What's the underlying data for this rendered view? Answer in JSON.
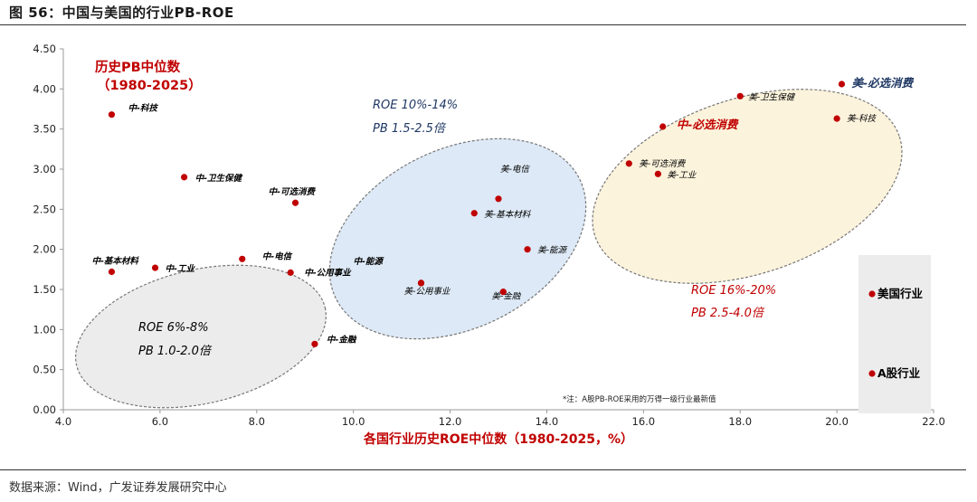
{
  "figure": {
    "title": "图 56：中国与美国的行业PB-ROE",
    "source": "数据来源：Wind，广发证券发展研究中心"
  },
  "colors": {
    "point": "#c00000",
    "red_text": "#c00000",
    "blue_text": "#1f3864",
    "grey_ellipse": "#ececec",
    "blue_ellipse": "#dde9f6",
    "yellow_ellipse": "#fcf3dc",
    "legend_box": "#ececec"
  },
  "chart_data": {
    "type": "scatter",
    "xlabel": "各国行业历史ROE中位数（1980-2025，%）",
    "ylabel_note": {
      "line1": "历史PB中位数",
      "line2": "（1980-2025）"
    },
    "xlim": [
      4.0,
      22.0
    ],
    "ylim": [
      0.0,
      4.5
    ],
    "x_ticks": [
      "4.0",
      "6.0",
      "8.0",
      "10.0",
      "12.0",
      "14.0",
      "16.0",
      "18.0",
      "20.0",
      "22.0"
    ],
    "y_ticks": [
      "0.00",
      "0.50",
      "1.00",
      "1.50",
      "2.00",
      "2.50",
      "3.00",
      "3.50",
      "4.00",
      "4.50"
    ],
    "grid": false,
    "series": [
      {
        "name": "A股行业",
        "points": [
          {
            "label": "中-科技",
            "x": 5.0,
            "y": 3.68
          },
          {
            "label": "中-卫生保健",
            "x": 6.5,
            "y": 2.9
          },
          {
            "label": "中-可选消费",
            "x": 8.8,
            "y": 2.58
          },
          {
            "label": "中-基本材料",
            "x": 5.0,
            "y": 1.72
          },
          {
            "label": "中-工业",
            "x": 5.9,
            "y": 1.77
          },
          {
            "label": "中-电信",
            "x": 7.7,
            "y": 1.88
          },
          {
            "label": "中-公用事业",
            "x": 8.7,
            "y": 1.71
          },
          {
            "label": "中-能源",
            "x": 11.4,
            "y": 1.58
          },
          {
            "label": "中-金融",
            "x": 9.2,
            "y": 0.82
          },
          {
            "label": "中-必选消费",
            "x": 16.4,
            "y": 3.53
          }
        ]
      },
      {
        "name": "美国行业",
        "points": [
          {
            "label": "美-电信",
            "x": 13.0,
            "y": 2.63
          },
          {
            "label": "美-基本材料",
            "x": 12.5,
            "y": 2.45
          },
          {
            "label": "美-能源",
            "x": 13.6,
            "y": 2.0
          },
          {
            "label": "美-公用事业",
            "x": 11.4,
            "y": 1.58
          },
          {
            "label": "美-金融",
            "x": 13.1,
            "y": 1.47
          },
          {
            "label": "美-卫生保健",
            "x": 18.0,
            "y": 3.91
          },
          {
            "label": "美-必选消费",
            "x": 20.1,
            "y": 4.06
          },
          {
            "label": "美-科技",
            "x": 20.0,
            "y": 3.63
          },
          {
            "label": "美-可选消费",
            "x": 15.7,
            "y": 3.07
          },
          {
            "label": "美-工业",
            "x": 16.3,
            "y": 2.94
          }
        ]
      }
    ],
    "clusters": [
      {
        "line1": "ROE  6%-8%",
        "line2": "PB  1.0-2.0倍"
      },
      {
        "line1": "ROE  10%-14%",
        "line2": "PB  1.5-2.5倍"
      },
      {
        "line1": "ROE  16%-20%",
        "line2": "PB  2.5-4.0倍"
      }
    ],
    "footnote": "*注：A股PB-ROE采用的万得一级行业最新值",
    "legend": {
      "placement": "right",
      "items": [
        "美国行业",
        "A股行业"
      ]
    }
  }
}
